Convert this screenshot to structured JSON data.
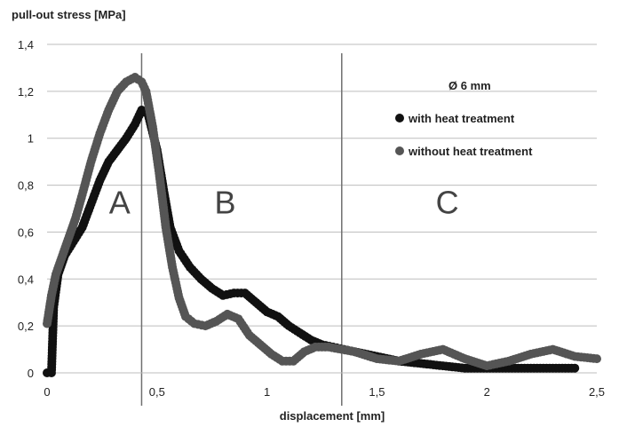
{
  "chart_data": {
    "type": "scatter",
    "title": "",
    "ylabel": "pull-out stress [MPa]",
    "xlabel": "displacement [mm]",
    "xlim": [
      0,
      2.5
    ],
    "ylim": [
      0,
      1.4
    ],
    "x_ticks": [
      0,
      0.5,
      1,
      1.5,
      2,
      2.5
    ],
    "x_tick_labels": [
      "0",
      "0,5",
      "1",
      "1,5",
      "2",
      "2,5"
    ],
    "y_ticks": [
      0,
      0.2,
      0.4,
      0.6,
      0.8,
      1,
      1.2,
      1.4
    ],
    "y_tick_labels": [
      "0",
      "0,2",
      "0,4",
      "0,6",
      "0,8",
      "1",
      "1,2",
      "1,4"
    ],
    "grid": "horizontal",
    "legend_position": "top-right",
    "legend_header": "Ø  6 mm",
    "region_separators_x": [
      0.43,
      1.34
    ],
    "region_labels": [
      {
        "text": "A",
        "x": 0.33,
        "y": 0.68
      },
      {
        "text": "B",
        "x": 0.81,
        "y": 0.68
      },
      {
        "text": "C",
        "x": 1.82,
        "y": 0.68
      }
    ],
    "series": [
      {
        "name": "with heat treatment",
        "color": "#111111",
        "points": [
          [
            0.0,
            0.0
          ],
          [
            0.02,
            0.0
          ],
          [
            0.03,
            0.28
          ],
          [
            0.05,
            0.42
          ],
          [
            0.08,
            0.5
          ],
          [
            0.12,
            0.56
          ],
          [
            0.16,
            0.62
          ],
          [
            0.2,
            0.72
          ],
          [
            0.24,
            0.82
          ],
          [
            0.28,
            0.9
          ],
          [
            0.32,
            0.95
          ],
          [
            0.36,
            1.0
          ],
          [
            0.4,
            1.06
          ],
          [
            0.43,
            1.12
          ],
          [
            0.46,
            1.1
          ],
          [
            0.5,
            0.95
          ],
          [
            0.53,
            0.78
          ],
          [
            0.56,
            0.62
          ],
          [
            0.6,
            0.52
          ],
          [
            0.65,
            0.45
          ],
          [
            0.7,
            0.4
          ],
          [
            0.75,
            0.36
          ],
          [
            0.8,
            0.33
          ],
          [
            0.85,
            0.34
          ],
          [
            0.9,
            0.34
          ],
          [
            0.95,
            0.3
          ],
          [
            1.0,
            0.26
          ],
          [
            1.05,
            0.24
          ],
          [
            1.1,
            0.2
          ],
          [
            1.15,
            0.17
          ],
          [
            1.2,
            0.14
          ],
          [
            1.25,
            0.12
          ],
          [
            1.3,
            0.11
          ],
          [
            1.35,
            0.1
          ],
          [
            1.4,
            0.09
          ],
          [
            1.5,
            0.07
          ],
          [
            1.6,
            0.05
          ],
          [
            1.7,
            0.04
          ],
          [
            1.8,
            0.03
          ],
          [
            1.9,
            0.02
          ],
          [
            2.0,
            0.02
          ],
          [
            2.1,
            0.02
          ],
          [
            2.2,
            0.02
          ],
          [
            2.3,
            0.02
          ],
          [
            2.4,
            0.02
          ]
        ]
      },
      {
        "name": "without heat treatment",
        "color": "#555555",
        "points": [
          [
            0.0,
            0.21
          ],
          [
            0.02,
            0.33
          ],
          [
            0.04,
            0.42
          ],
          [
            0.07,
            0.5
          ],
          [
            0.1,
            0.58
          ],
          [
            0.13,
            0.66
          ],
          [
            0.16,
            0.76
          ],
          [
            0.2,
            0.9
          ],
          [
            0.24,
            1.02
          ],
          [
            0.28,
            1.12
          ],
          [
            0.32,
            1.2
          ],
          [
            0.36,
            1.24
          ],
          [
            0.4,
            1.26
          ],
          [
            0.43,
            1.24
          ],
          [
            0.45,
            1.2
          ],
          [
            0.48,
            1.05
          ],
          [
            0.51,
            0.85
          ],
          [
            0.54,
            0.62
          ],
          [
            0.57,
            0.45
          ],
          [
            0.6,
            0.32
          ],
          [
            0.63,
            0.24
          ],
          [
            0.67,
            0.21
          ],
          [
            0.72,
            0.2
          ],
          [
            0.77,
            0.22
          ],
          [
            0.82,
            0.25
          ],
          [
            0.87,
            0.23
          ],
          [
            0.92,
            0.16
          ],
          [
            0.97,
            0.12
          ],
          [
            1.02,
            0.08
          ],
          [
            1.07,
            0.05
          ],
          [
            1.12,
            0.05
          ],
          [
            1.17,
            0.09
          ],
          [
            1.22,
            0.11
          ],
          [
            1.28,
            0.11
          ],
          [
            1.34,
            0.1
          ],
          [
            1.4,
            0.09
          ],
          [
            1.5,
            0.06
          ],
          [
            1.6,
            0.05
          ],
          [
            1.7,
            0.08
          ],
          [
            1.8,
            0.1
          ],
          [
            1.9,
            0.06
          ],
          [
            2.0,
            0.03
          ],
          [
            2.1,
            0.05
          ],
          [
            2.2,
            0.08
          ],
          [
            2.3,
            0.1
          ],
          [
            2.4,
            0.07
          ],
          [
            2.5,
            0.06
          ]
        ]
      }
    ]
  }
}
